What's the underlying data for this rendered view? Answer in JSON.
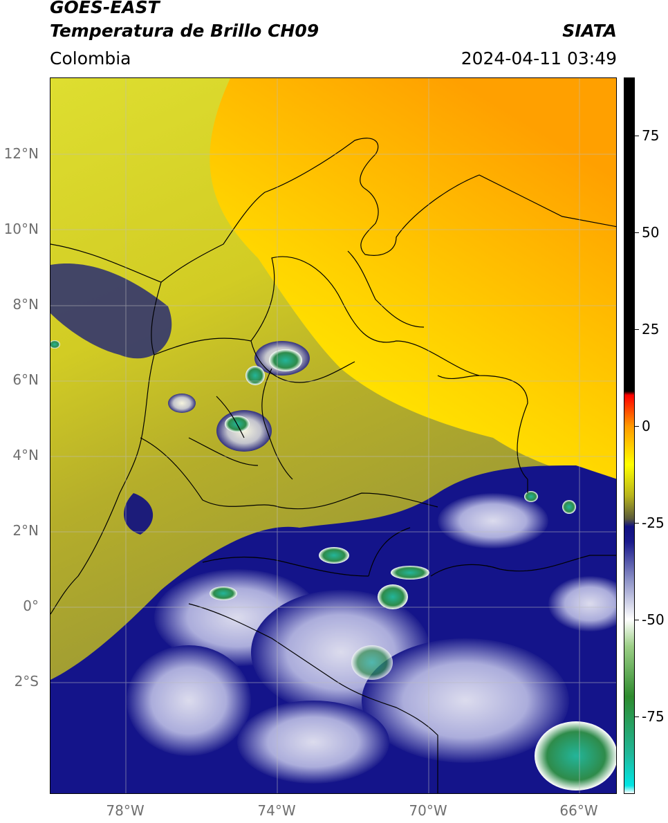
{
  "header": {
    "satellite": "GOES-EAST",
    "product": "Temperatura de Brillo CH09",
    "region": "Colombia",
    "agency": "SIATA",
    "datetime": "2024-04-11 03:49"
  },
  "map": {
    "lon_range": [
      -80,
      -65
    ],
    "lat_range": [
      -5,
      14
    ],
    "lat_ticks": [
      "12°N",
      "10°N",
      "8°N",
      "6°N",
      "4°N",
      "2°N",
      "0°",
      "2°S"
    ],
    "lon_ticks": [
      "78°W",
      "74°W",
      "70°W",
      "66°W"
    ],
    "lat_values": [
      12,
      10,
      8,
      6,
      4,
      2,
      0,
      -2
    ],
    "lon_values": [
      -78,
      -74,
      -70,
      -66
    ]
  },
  "colorbar": {
    "labels": [
      "75",
      "50",
      "25",
      "0",
      "-25",
      "-50",
      "-75"
    ],
    "values": [
      75,
      50,
      25,
      0,
      -25,
      -50,
      -75
    ],
    "range": [
      -95,
      90
    ],
    "stops": [
      {
        "v": -95,
        "c": "#ffffff"
      },
      {
        "v": -93,
        "c": "#00e5e5"
      },
      {
        "v": -85,
        "c": "#20b89a"
      },
      {
        "v": -70,
        "c": "#2e8b2e"
      },
      {
        "v": -57,
        "c": "#9ccf86"
      },
      {
        "v": -50,
        "c": "#ffffff"
      },
      {
        "v": -40,
        "c": "#8f94c8"
      },
      {
        "v": -30,
        "c": "#1a1a8c"
      },
      {
        "v": -26,
        "c": "#101080"
      },
      {
        "v": -24,
        "c": "#5a5a3a"
      },
      {
        "v": -18,
        "c": "#b8b41c"
      },
      {
        "v": -10,
        "c": "#ffff00"
      },
      {
        "v": 0,
        "c": "#ff9900"
      },
      {
        "v": 8,
        "c": "#ff0000"
      },
      {
        "v": 9,
        "c": "#000000"
      },
      {
        "v": 90,
        "c": "#000000"
      }
    ]
  }
}
